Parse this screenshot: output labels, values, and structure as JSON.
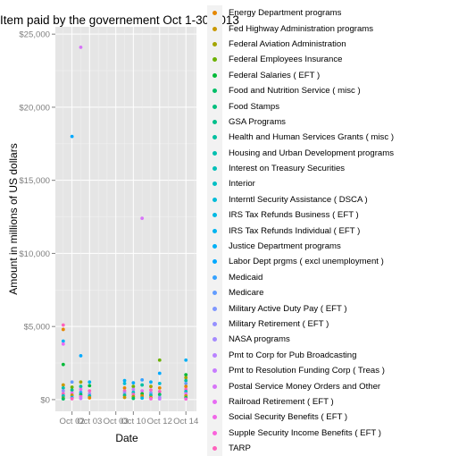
{
  "chart_data": {
    "type": "scatter",
    "title": "Item paid by the governement Oct 1-30 2013",
    "xlabel": "Date",
    "ylabel": "Amount in millions of US dollars",
    "x_tick_labels": [
      "Oct 02",
      "Oct 03",
      "Oct 03",
      "Oct 10",
      "Oct 12",
      "Oct 14"
    ],
    "y_tick_labels": [
      "$0",
      "$5,000",
      "$10,000",
      "$15,000",
      "$20,000",
      "$25,000"
    ],
    "ylim": [
      -800,
      25500
    ],
    "grid": true,
    "legend_position": "right",
    "legend_entries": [
      {
        "label": "Energy Department programs",
        "color": "#e58700"
      },
      {
        "label": "Fed Highway Administration programs",
        "color": "#c99800"
      },
      {
        "label": "Federal Aviation Administration",
        "color": "#a3a500"
      },
      {
        "label": "Federal Employees Insurance",
        "color": "#6bb100"
      },
      {
        "label": "Federal Salaries ( EFT )",
        "color": "#00ba38"
      },
      {
        "label": "Food and Nutrition Service ( misc )",
        "color": "#00be67"
      },
      {
        "label": "Food Stamps",
        "color": "#00bf7d"
      },
      {
        "label": "GSA Programs",
        "color": "#00c08b"
      },
      {
        "label": "Health and Human Services Grants ( misc )",
        "color": "#00c0a0"
      },
      {
        "label": "Housing and Urban Development programs",
        "color": "#00c0af"
      },
      {
        "label": "Interest on Treasury Securities",
        "color": "#00c0b8"
      },
      {
        "label": "Interior",
        "color": "#00bfc4"
      },
      {
        "label": "Interntl Security Assistance ( DSCA )",
        "color": "#00bcd8"
      },
      {
        "label": "IRS Tax Refunds Business ( EFT )",
        "color": "#00b9e3"
      },
      {
        "label": "IRS Tax Refunds Individual ( EFT )",
        "color": "#00b4f0"
      },
      {
        "label": "Justice Department programs",
        "color": "#00b0f6"
      },
      {
        "label": "Labor Dept prgms ( excl unemployment )",
        "color": "#00a9ff"
      },
      {
        "label": "Medicaid",
        "color": "#35a2ff"
      },
      {
        "label": "Medicare",
        "color": "#619cff"
      },
      {
        "label": "Military Active Duty Pay ( EFT )",
        "color": "#7f97ff"
      },
      {
        "label": "Military Retirement ( EFT )",
        "color": "#9590ff"
      },
      {
        "label": "NASA programs",
        "color": "#a58aff"
      },
      {
        "label": "Pmt to Corp for Pub Broadcasting",
        "color": "#b983ff"
      },
      {
        "label": "Pmt to Resolution Funding Corp ( Treas )",
        "color": "#c77cff"
      },
      {
        "label": "Postal Service Money Orders and Other",
        "color": "#d774f8"
      },
      {
        "label": "Railroad Retirement ( EFT )",
        "color": "#e76bf3"
      },
      {
        "label": "Social Security Benefits ( EFT )",
        "color": "#f166e8"
      },
      {
        "label": "Supple Security Income Benefits ( EFT )",
        "color": "#fa62db"
      },
      {
        "label": "TARP",
        "color": "#ff62bc"
      }
    ],
    "series": [
      {
        "x": 1,
        "values": [
          5100,
          4800,
          4000,
          3800,
          2400,
          1000,
          800,
          600,
          400,
          250,
          100,
          50
        ],
        "colors": [
          "#ff62bc",
          "#e58700",
          "#00b0f6",
          "#e76bf3",
          "#00ba38",
          "#c99800",
          "#00c0af",
          "#9590ff",
          "#ff62bc",
          "#00bfc4",
          "#a3a500",
          "#00be67"
        ]
      },
      {
        "x": 1.5,
        "values": [
          18000,
          850,
          1200,
          650,
          450,
          300,
          150,
          60
        ],
        "colors": [
          "#00a9ff",
          "#6bb100",
          "#619cff",
          "#00c08b",
          "#e76bf3",
          "#c99800",
          "#00b4f0",
          "#ff62bc"
        ]
      },
      {
        "x": 2,
        "values": [
          24100,
          3000,
          1200,
          900,
          700,
          500,
          350,
          200,
          80
        ],
        "colors": [
          "#d774f8",
          "#00a9ff",
          "#a3a500",
          "#00c0a0",
          "#e76bf3",
          "#35a2ff",
          "#00be67",
          "#fa62db",
          "#c77cff"
        ]
      },
      {
        "x": 2.5,
        "values": [
          1200,
          950,
          600,
          400,
          250,
          120
        ],
        "colors": [
          "#00b4f0",
          "#00ba38",
          "#ff62bc",
          "#a58aff",
          "#00c0b8",
          "#e58700"
        ]
      },
      {
        "x": 4.5,
        "values": [
          1300,
          1100,
          800,
          600,
          450,
          300,
          150
        ],
        "colors": [
          "#00b0f6",
          "#00bcd8",
          "#e58700",
          "#ff62bc",
          "#9590ff",
          "#00c08b",
          "#c99800"
        ]
      },
      {
        "x": 5,
        "values": [
          1150,
          900,
          700,
          500,
          350,
          200,
          80
        ],
        "colors": [
          "#00a9ff",
          "#6bb100",
          "#c77cff",
          "#00bfc4",
          "#ff62bc",
          "#a3a500",
          "#00be67"
        ]
      },
      {
        "x": 5.5,
        "values": [
          12400,
          1350,
          1000,
          600,
          400,
          250,
          100
        ],
        "colors": [
          "#d774f8",
          "#35a2ff",
          "#00c0a0",
          "#e76bf3",
          "#00ba38",
          "#e58700",
          "#00b9e3"
        ]
      },
      {
        "x": 6,
        "values": [
          1200,
          900,
          650,
          450,
          300,
          150,
          60
        ],
        "colors": [
          "#00b0f6",
          "#a3a500",
          "#ff62bc",
          "#7f97ff",
          "#00c0af",
          "#c99800",
          "#fa62db"
        ]
      },
      {
        "x": 6.5,
        "values": [
          2700,
          1800,
          1100,
          800,
          550,
          350,
          150,
          50
        ],
        "colors": [
          "#6bb100",
          "#00a9ff",
          "#00bcd8",
          "#e58700",
          "#ff62bc",
          "#00be67",
          "#9590ff",
          "#c77cff"
        ]
      },
      {
        "x": 8,
        "values": [
          2700,
          1700,
          1500,
          1300,
          1100,
          900,
          700,
          550,
          400,
          250,
          120,
          40
        ],
        "colors": [
          "#00b0f6",
          "#00ba38",
          "#a3a500",
          "#00c0a0",
          "#619cff",
          "#e58700",
          "#ff62bc",
          "#00bfc4",
          "#e76bf3",
          "#c99800",
          "#00be67",
          "#fa62db"
        ]
      }
    ]
  }
}
